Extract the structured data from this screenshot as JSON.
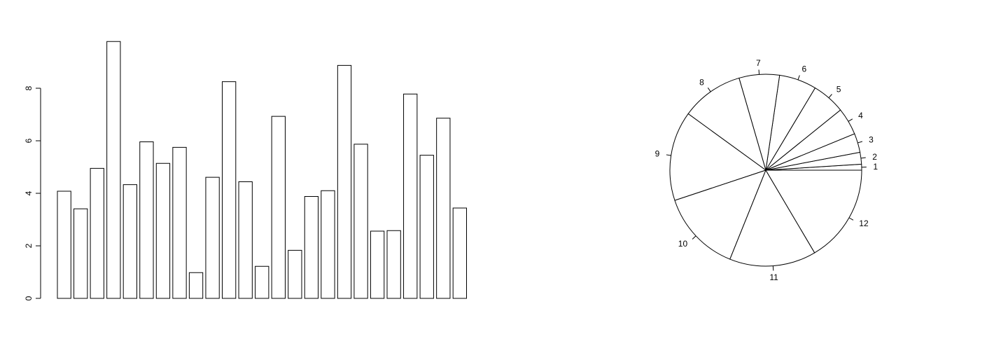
{
  "chart_data": [
    {
      "type": "bar",
      "title": "",
      "xlabel": "",
      "ylabel": "",
      "ylim": [
        0,
        10
      ],
      "y_ticks": [
        0,
        2,
        4,
        6,
        8
      ],
      "y_tick_labels": [
        "0",
        "2",
        "4",
        "6",
        "8"
      ],
      "values": [
        4.08,
        3.41,
        4.95,
        9.78,
        4.33,
        5.96,
        5.14,
        5.75,
        0.98,
        4.61,
        8.25,
        4.44,
        1.22,
        6.93,
        1.83,
        3.88,
        4.1,
        8.87,
        5.87,
        2.56,
        2.58,
        7.78,
        5.45,
        6.86,
        3.44
      ],
      "grid": false,
      "colors": {
        "fill": "#ffffff",
        "stroke": "#000000"
      }
    },
    {
      "type": "pie",
      "title": "",
      "labels": [
        "1",
        "2",
        "3",
        "4",
        "5",
        "6",
        "7",
        "8",
        "9",
        "10",
        "11",
        "12"
      ],
      "values": [
        1.0,
        2.0,
        3.2,
        4.6,
        5.6,
        6.3,
        6.8,
        10.5,
        15.1,
        13.8,
        14.6,
        16.5
      ],
      "start_angle_deg": 0,
      "direction": "counterclockwise",
      "colors": {
        "fill": "#ffffff",
        "stroke": "#000000"
      }
    }
  ]
}
